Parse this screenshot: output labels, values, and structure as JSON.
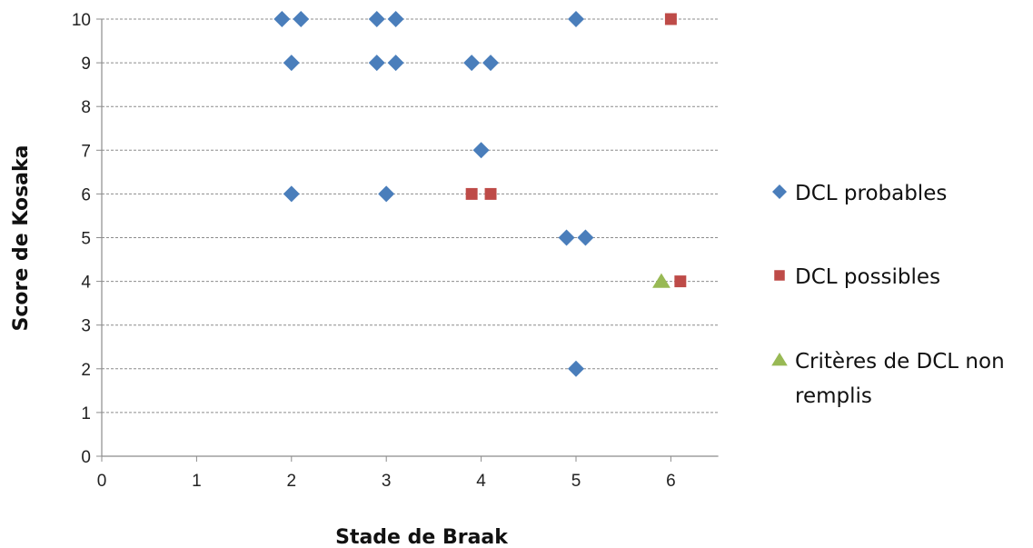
{
  "chart_data": {
    "type": "scatter",
    "title": "",
    "xlabel": "Stade de Braak",
    "ylabel": "Score de Kosaka",
    "xlim": [
      0,
      6.5
    ],
    "ylim": [
      0,
      10
    ],
    "x_ticks": [
      "0",
      "1",
      "2",
      "3",
      "4",
      "5",
      "6"
    ],
    "y_ticks": [
      "0",
      "1",
      "2",
      "3",
      "4",
      "5",
      "6",
      "7",
      "8",
      "9",
      "10"
    ],
    "grid": "horizontal dashed",
    "legend_position": "right",
    "series": [
      {
        "name": "DCL probables",
        "marker": "diamond",
        "color": "#4a7ebb",
        "points": [
          {
            "x": 1.9,
            "y": 10
          },
          {
            "x": 2.1,
            "y": 10
          },
          {
            "x": 2.9,
            "y": 10
          },
          {
            "x": 3.1,
            "y": 10
          },
          {
            "x": 5.0,
            "y": 10
          },
          {
            "x": 2.0,
            "y": 9
          },
          {
            "x": 2.9,
            "y": 9
          },
          {
            "x": 3.1,
            "y": 9
          },
          {
            "x": 3.9,
            "y": 9
          },
          {
            "x": 4.1,
            "y": 9
          },
          {
            "x": 4.0,
            "y": 7
          },
          {
            "x": 2.0,
            "y": 6
          },
          {
            "x": 3.0,
            "y": 6
          },
          {
            "x": 4.9,
            "y": 5
          },
          {
            "x": 5.1,
            "y": 5
          },
          {
            "x": 5.0,
            "y": 2
          }
        ]
      },
      {
        "name": "DCL possibles",
        "marker": "square",
        "color": "#be4b48",
        "points": [
          {
            "x": 6.0,
            "y": 10
          },
          {
            "x": 3.9,
            "y": 6
          },
          {
            "x": 4.1,
            "y": 6
          },
          {
            "x": 6.1,
            "y": 4
          }
        ]
      },
      {
        "name": "Critères de DCL non remplis",
        "legend_lines": [
          "Critères de DCL non",
          "remplis"
        ],
        "marker": "triangle",
        "color": "#98b954",
        "points": [
          {
            "x": 5.9,
            "y": 4
          }
        ]
      }
    ]
  }
}
